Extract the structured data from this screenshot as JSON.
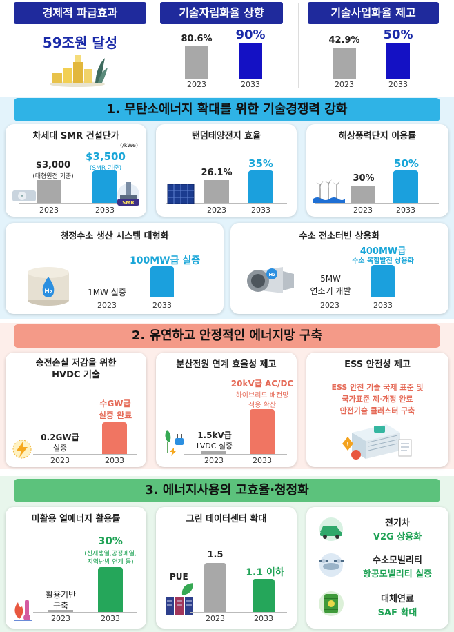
{
  "top": {
    "economic": {
      "title": "경제적 파급효과",
      "value": "59조원 달성"
    },
    "self_reliance": {
      "title": "기술자립화율 상향"
    },
    "commercialization": {
      "title": "기술사업화율 제고"
    }
  },
  "sections": {
    "s1": "1. 무탄소에너지 확대를 위한 기술경쟁력 강화",
    "s2": "2. 유연하고 안정적인 에너지망 구축",
    "s3": "3. 에너지사용의 고효율·청정화"
  },
  "cards": {
    "smr": {
      "title": "차세대 SMR 건설단가",
      "unit": "(/kWe)",
      "v1": "$3,000",
      "v1_sub": "(대형원전 기준)",
      "v2": "$3,500",
      "v2_sub": "(SMR 기준)",
      "badge": "SMR"
    },
    "tandem": {
      "title": "탠덤태양전지 효율",
      "v1": "26.1%",
      "v2": "35%"
    },
    "offshore": {
      "title": "해상풍력단지 이용률",
      "v1": "30%",
      "v2": "50%"
    },
    "h2prod": {
      "title": "청정수소 생산 시스템 대형화",
      "v1": "1MW 실증",
      "v2": "100MW급 실증",
      "badge": "H₂"
    },
    "h2turbine": {
      "title": "수소 전소터빈 상용화",
      "v1_a": "5MW",
      "v1_b": "연소기 개발",
      "v2_a": "400MW급",
      "v2_b": "수소 복합발전 상용화",
      "badge": "H₂"
    },
    "hvdc": {
      "title_a": "송전손실 저감을 위한",
      "title_b": "HVDC 기술",
      "v1_a": "0.2GW급",
      "v1_b": "실증",
      "v2_a": "수GW급",
      "v2_b": "실증 완료"
    },
    "dist": {
      "title": "분산전원 연계 효율성 제고",
      "v1_a": "1.5kV급",
      "v1_b": "LVDC 실증",
      "v2_a": "20kV급 AC/DC",
      "v2_b": "하이브리드 배전망",
      "v2_c": "적용 확산"
    },
    "ess": {
      "title": "ESS 안전성 제고",
      "l1": "ESS 안전 기술 국제 표준 및",
      "l2": "국가표준 제·개정 완료",
      "l3": "안전기술 클러스터 구축"
    },
    "heat": {
      "title": "미활용 열에너지 활용률",
      "v1_a": "활용기반",
      "v1_b": "구축",
      "v2": "30%",
      "v2_sub_a": "(신재생열,공정폐열,",
      "v2_sub_b": "지역난방 연계 등)"
    },
    "datacenter": {
      "title": "그린 데이터센터 확대",
      "label": "PUE",
      "v1": "1.5",
      "v2": "1.1 이하"
    },
    "mobility": {
      "ev_title": "전기차",
      "ev_sub": "V2G 상용화",
      "h2m_title": "수소모빌리티",
      "h2m_sub": "항공모빌리티 실증",
      "fuel_title": "대체연료",
      "fuel_sub": "SAF 확대"
    }
  },
  "colors": {
    "navy": "#1f2a9c",
    "bar_navy": "#1411c4",
    "teal": "#1ba0dd",
    "red": "#f07562",
    "green": "#25a65a",
    "gray": "#a8a8a8"
  },
  "chart_data": [
    {
      "type": "bar",
      "title": "기술자립화율 상향",
      "categories": [
        "2023",
        "2033"
      ],
      "values": [
        80.6,
        90
      ],
      "labels": [
        "80.6%",
        "90%"
      ]
    },
    {
      "type": "bar",
      "title": "기술사업화율 제고",
      "categories": [
        "2023",
        "2033"
      ],
      "values": [
        42.9,
        50
      ],
      "labels": [
        "42.9%",
        "50%"
      ]
    },
    {
      "type": "bar",
      "title": "차세대 SMR 건설단가",
      "categories": [
        "2023",
        "2033"
      ],
      "values": [
        3000,
        3500
      ],
      "labels": [
        "$3,000",
        "$3,500"
      ]
    },
    {
      "type": "bar",
      "title": "탠덤태양전지 효율",
      "categories": [
        "2023",
        "2033"
      ],
      "values": [
        26.1,
        35
      ],
      "labels": [
        "26.1%",
        "35%"
      ]
    },
    {
      "type": "bar",
      "title": "해상풍력단지 이용률",
      "categories": [
        "2023",
        "2033"
      ],
      "values": [
        30,
        50
      ],
      "labels": [
        "30%",
        "50%"
      ]
    },
    {
      "type": "bar",
      "title": "청정수소 생산 시스템 대형화",
      "categories": [
        "2023",
        "2033"
      ],
      "labels": [
        "1MW 실증",
        "100MW급 실증"
      ]
    },
    {
      "type": "bar",
      "title": "수소 전소터빈 상용화",
      "categories": [
        "2023",
        "2033"
      ],
      "labels": [
        "5MW 연소기 개발",
        "400MW급 수소 복합발전 상용화"
      ]
    },
    {
      "type": "bar",
      "title": "송전손실 저감을 위한 HVDC 기술",
      "categories": [
        "2023",
        "2033"
      ],
      "labels": [
        "0.2GW급 실증",
        "수GW급 실증 완료"
      ]
    },
    {
      "type": "bar",
      "title": "분산전원 연계 효율성 제고",
      "categories": [
        "2023",
        "2033"
      ],
      "labels": [
        "1.5kV급 LVDC 실증",
        "20kV급 AC/DC 하이브리드 배전망 적용 확산"
      ]
    },
    {
      "type": "bar",
      "title": "미활용 열에너지 활용률",
      "categories": [
        "2023",
        "2033"
      ],
      "labels": [
        "활용기반 구축",
        "30%"
      ]
    },
    {
      "type": "bar",
      "title": "그린 데이터센터 확대",
      "categories": [
        "2023",
        "2033"
      ],
      "values": [
        1.5,
        1.1
      ],
      "labels": [
        "1.5",
        "1.1 이하"
      ]
    }
  ]
}
